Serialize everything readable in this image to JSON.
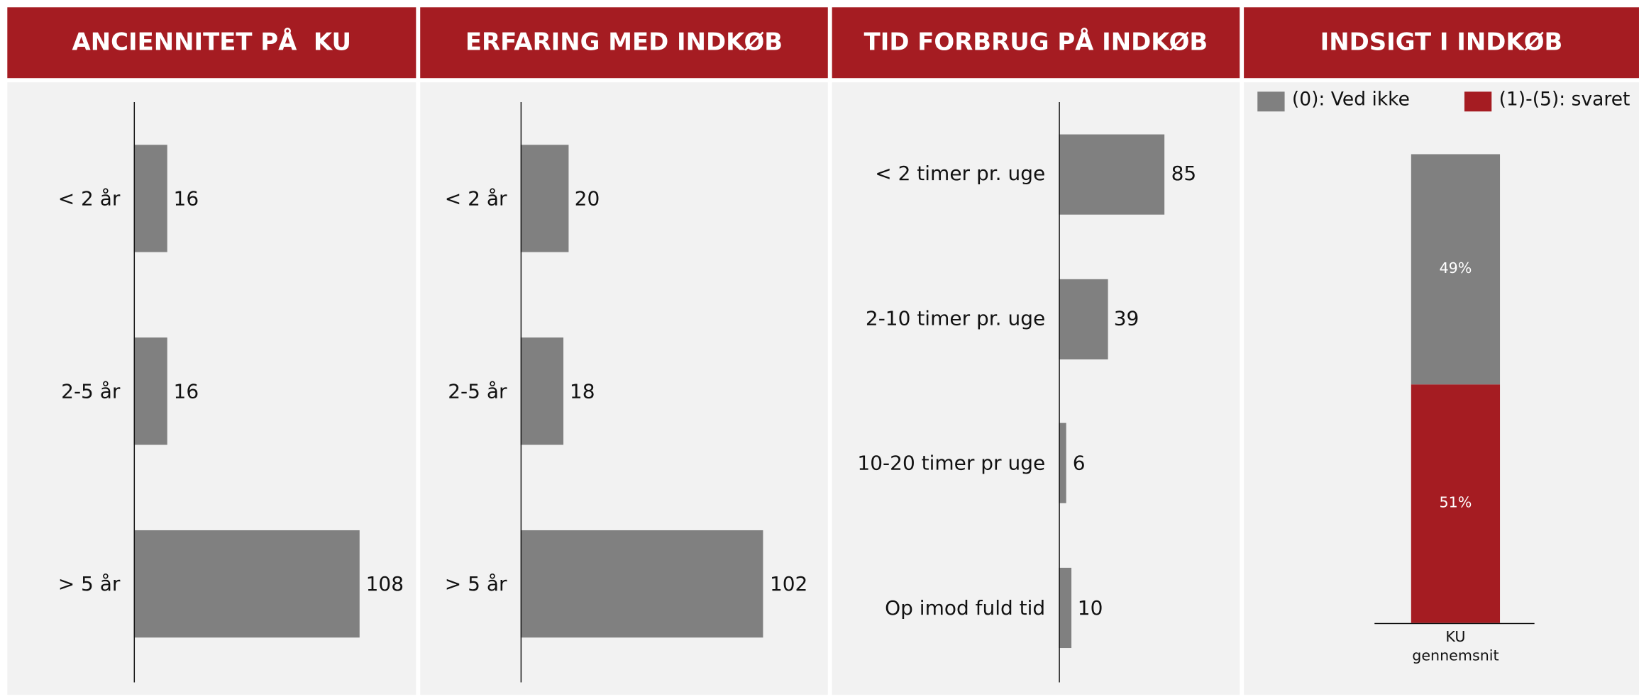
{
  "chart_data": [
    {
      "type": "bar",
      "title": "ANCIENNITET PÅ  KU",
      "categories": [
        "< 2 år",
        "2-5 år",
        "> 5 år"
      ],
      "values": [
        16,
        16,
        108
      ],
      "color": "#808080",
      "xlim": [
        0,
        135
      ]
    },
    {
      "type": "bar",
      "title": "ERFARING MED INDKØB",
      "categories": [
        "< 2 år",
        "2-5 år",
        "> 5 år"
      ],
      "values": [
        20,
        18,
        102
      ],
      "color": "#808080",
      "xlim": [
        0,
        129
      ]
    },
    {
      "type": "bar",
      "title": "TID FORBRUG PÅ INDKØB",
      "categories": [
        "< 2 timer pr. uge",
        "2-10 timer pr. uge",
        "10-20 timer pr uge",
        "Op imod fuld tid"
      ],
      "values": [
        85,
        39,
        6,
        10
      ],
      "color": "#808080",
      "xlim": [
        0,
        145
      ]
    },
    {
      "type": "stacked_bar",
      "title": "INDSIGT I INDKØB",
      "categories": [
        "KU gennemsnit"
      ],
      "ylim": [
        0,
        100
      ],
      "series": [
        {
          "name": "(0): Ved ikke",
          "color": "#808080",
          "values": [
            49
          ],
          "value_labels": [
            "49%"
          ]
        },
        {
          "name": "(1)-(5): svaret",
          "color": "#a51c22",
          "values": [
            51
          ],
          "value_labels": [
            "51%"
          ]
        }
      ]
    }
  ]
}
